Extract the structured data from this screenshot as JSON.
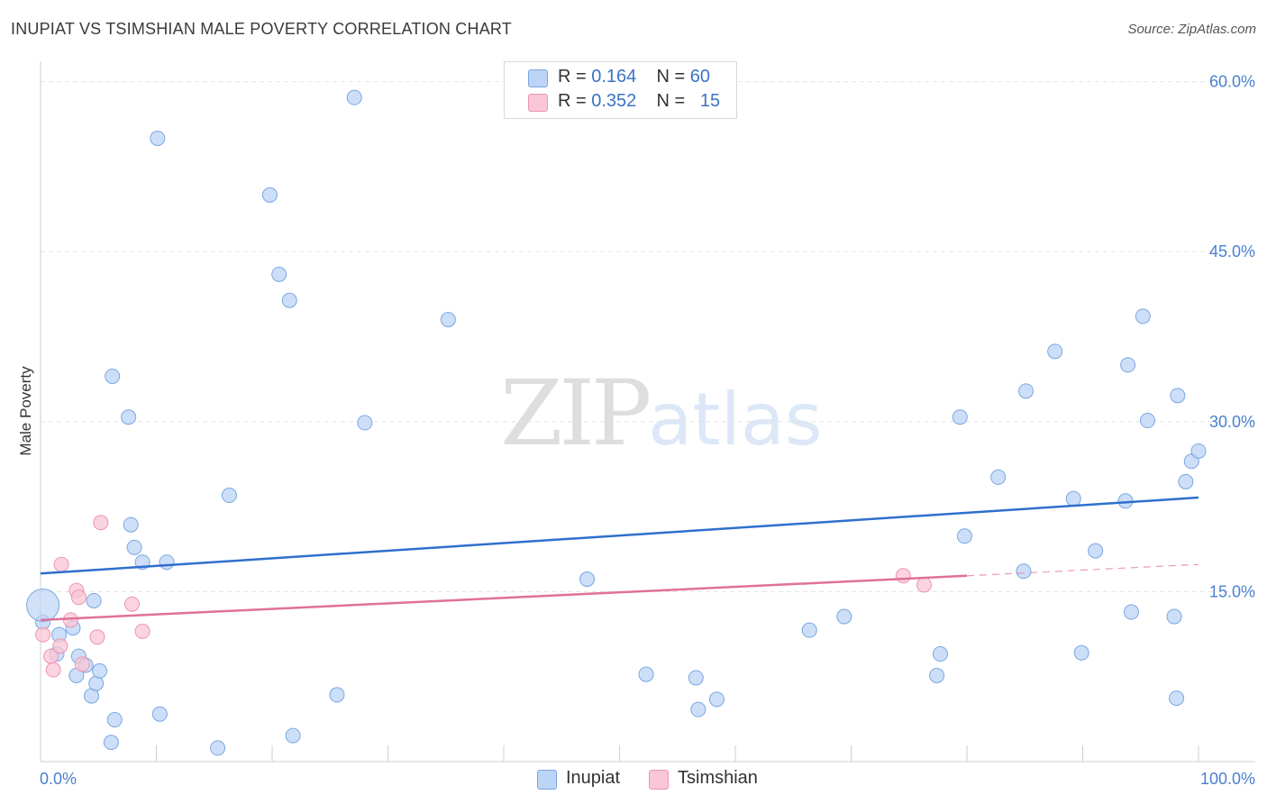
{
  "title": "INUPIAT VS TSIMSHIAN MALE POVERTY CORRELATION CHART",
  "source": "Source: ZipAtlas.com",
  "watermark": {
    "zip": "ZIP",
    "atlas": "atlas"
  },
  "legend": {
    "rows": [
      {
        "r_label": "R = ",
        "r_value": "0.164",
        "n_label": "N = ",
        "n_value": "60"
      },
      {
        "r_label": "R = ",
        "r_value": "0.352",
        "n_label": "N = ",
        "n_value": "15"
      }
    ]
  },
  "bottom_legend": {
    "inupiat": "Inupiat",
    "tsimshian": "Tsimshian"
  },
  "colors": {
    "inupiat_fill": "#bcd4f5",
    "inupiat_stroke": "#7aa7e0",
    "inupiat_line": "#2f6fcc",
    "tsimshian_fill": "#f9c6d6",
    "tsimshian_stroke": "#ec95b2",
    "tsimshian_line": "#e0709a",
    "grid": "#e3e3e3",
    "axis_label": "#4a7fd0"
  },
  "chart_data": {
    "type": "scatter",
    "title": "INUPIAT VS TSIMSHIAN MALE POVERTY CORRELATION CHART",
    "xlabel": "",
    "ylabel": "Male Poverty",
    "xlim": [
      0,
      100
    ],
    "ylim": [
      0,
      61
    ],
    "x_tick_labels": [
      {
        "value": 0,
        "label": "0.0%"
      },
      {
        "value": 100,
        "label": "100.0%"
      }
    ],
    "y_tick_labels": [
      {
        "value": 15,
        "label": "15.0%"
      },
      {
        "value": 30,
        "label": "30.0%"
      },
      {
        "value": 45,
        "label": "45.0%"
      },
      {
        "value": 60,
        "label": "60.0%"
      }
    ],
    "grid": true,
    "legend_position": "top-center",
    "series": [
      {
        "name": "Inupiat",
        "R": 0.164,
        "N": 60,
        "trend": {
          "x": [
            0,
            100
          ],
          "y": [
            16.6,
            23.3
          ]
        },
        "points": [
          [
            0.2,
            12.3
          ],
          [
            1.4,
            9.5
          ],
          [
            1.6,
            11.2
          ],
          [
            2.8,
            11.8
          ],
          [
            3.1,
            7.6
          ],
          [
            3.3,
            9.3
          ],
          [
            3.9,
            8.5
          ],
          [
            4.4,
            5.8
          ],
          [
            4.6,
            14.2
          ],
          [
            4.8,
            6.9
          ],
          [
            5.1,
            8.0
          ],
          [
            6.1,
            1.7
          ],
          [
            6.2,
            34.0
          ],
          [
            6.4,
            3.7
          ],
          [
            7.6,
            30.4
          ],
          [
            7.8,
            20.9
          ],
          [
            8.1,
            18.9
          ],
          [
            8.8,
            17.6
          ],
          [
            10.1,
            55.0
          ],
          [
            10.3,
            4.2
          ],
          [
            10.9,
            17.6
          ],
          [
            15.3,
            1.2
          ],
          [
            16.3,
            23.5
          ],
          [
            19.8,
            50.0
          ],
          [
            20.6,
            43.0
          ],
          [
            21.5,
            40.7
          ],
          [
            21.8,
            2.3
          ],
          [
            25.6,
            5.9
          ],
          [
            27.1,
            58.6
          ],
          [
            28.0,
            29.9
          ],
          [
            35.2,
            39.0
          ],
          [
            47.2,
            16.1
          ],
          [
            52.3,
            7.7
          ],
          [
            56.6,
            7.4
          ],
          [
            56.8,
            4.6
          ],
          [
            58.4,
            5.5
          ],
          [
            66.4,
            11.6
          ],
          [
            69.4,
            12.8
          ],
          [
            77.4,
            7.6
          ],
          [
            77.7,
            9.5
          ],
          [
            79.4,
            30.4
          ],
          [
            79.8,
            19.9
          ],
          [
            82.7,
            25.1
          ],
          [
            84.9,
            16.8
          ],
          [
            85.1,
            32.7
          ],
          [
            87.6,
            36.2
          ],
          [
            89.2,
            23.2
          ],
          [
            89.9,
            9.6
          ],
          [
            91.1,
            18.6
          ],
          [
            93.7,
            23.0
          ],
          [
            93.9,
            35.0
          ],
          [
            94.2,
            13.2
          ],
          [
            95.2,
            39.3
          ],
          [
            95.6,
            30.1
          ],
          [
            97.9,
            12.8
          ],
          [
            98.1,
            5.6
          ],
          [
            98.2,
            32.3
          ],
          [
            98.9,
            24.7
          ],
          [
            99.4,
            26.5
          ],
          [
            100.0,
            27.4
          ]
        ]
      },
      {
        "name": "Tsimshian",
        "R": 0.352,
        "N": 15,
        "trend": {
          "x": [
            0,
            80
          ],
          "y": [
            12.5,
            16.4
          ]
        },
        "trend_extension": {
          "x": [
            80,
            100
          ],
          "y": [
            16.4,
            17.4
          ]
        },
        "points": [
          [
            0.2,
            11.2
          ],
          [
            0.9,
            9.3
          ],
          [
            1.1,
            8.1
          ],
          [
            1.7,
            10.2
          ],
          [
            1.8,
            17.4
          ],
          [
            2.6,
            12.5
          ],
          [
            3.1,
            15.1
          ],
          [
            3.3,
            14.5
          ],
          [
            3.6,
            8.6
          ],
          [
            4.9,
            11.0
          ],
          [
            5.2,
            21.1
          ],
          [
            7.9,
            13.9
          ],
          [
            8.8,
            11.5
          ],
          [
            74.5,
            16.4
          ],
          [
            76.3,
            15.6
          ]
        ]
      }
    ]
  }
}
